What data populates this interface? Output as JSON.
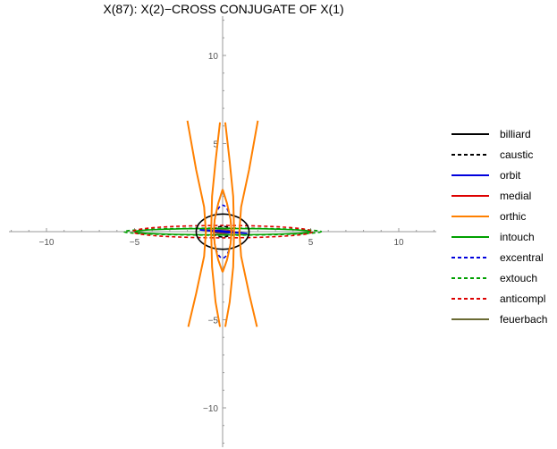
{
  "chart_data": {
    "type": "line",
    "title": "X(87): X(2)−CROSS CONJUGATE OF X(1)",
    "xlabel": "",
    "ylabel": "",
    "xlim": [
      -12.2,
      12.2
    ],
    "ylim": [
      -12.2,
      12.2
    ],
    "xticks": [
      -10,
      -5,
      5,
      10
    ],
    "yticks": [
      10,
      5,
      -5,
      -10
    ],
    "xtick_labels": [
      "−10",
      "−5",
      "5",
      "10"
    ],
    "ytick_labels": [
      "10",
      "5",
      "−5",
      "−10"
    ],
    "grid": false,
    "legend_position": "right",
    "series": [
      {
        "name": "billiard",
        "color": "#000000",
        "dash": "solid",
        "shape": "ellipse",
        "a": 1.5,
        "b": 1.0
      },
      {
        "name": "caustic",
        "color": "#000000",
        "dash": "dashed",
        "shape": "ellipse",
        "a": 0.55,
        "b": 0.3
      },
      {
        "name": "orbit",
        "color": "#0000dd",
        "dash": "solid",
        "shape": "polyline",
        "points": [
          [
            -1.3,
            0.1
          ],
          [
            0.3,
            -0.05
          ],
          [
            1.4,
            -0.1
          ],
          [
            -0.2,
            0.06
          ],
          [
            -1.3,
            0.1
          ]
        ]
      },
      {
        "name": "medial",
        "color": "#dd0000",
        "dash": "solid",
        "shape": "polyline",
        "points": [
          [
            -0.6,
            0.0
          ],
          [
            0.6,
            0.04
          ],
          [
            0.1,
            -0.05
          ],
          [
            -0.6,
            0.0
          ]
        ]
      },
      {
        "name": "orthic",
        "color": "#ff8000",
        "dash": "solid",
        "shape": "curves",
        "curves": [
          [
            [
              -2.0,
              6.3
            ],
            [
              -1.5,
              3.5
            ],
            [
              -1.05,
              1.4
            ],
            [
              -0.95,
              0
            ],
            [
              -1.05,
              -1.4
            ],
            [
              -1.5,
              -3.5
            ],
            [
              -1.95,
              -5.4
            ]
          ],
          [
            [
              2.0,
              6.3
            ],
            [
              1.5,
              3.5
            ],
            [
              1.05,
              1.4
            ],
            [
              0.95,
              0
            ],
            [
              1.05,
              -1.4
            ],
            [
              1.5,
              -3.5
            ],
            [
              1.95,
              -5.4
            ]
          ],
          [
            [
              -0.15,
              6.2
            ],
            [
              -0.4,
              4.0
            ],
            [
              -0.6,
              2.0
            ],
            [
              -0.65,
              0
            ],
            [
              -0.6,
              -2.0
            ],
            [
              -0.4,
              -4.0
            ],
            [
              -0.15,
              -5.4
            ]
          ],
          [
            [
              0.15,
              6.2
            ],
            [
              0.4,
              4.0
            ],
            [
              0.6,
              2.0
            ],
            [
              0.65,
              0
            ],
            [
              0.6,
              -2.0
            ],
            [
              0.4,
              -4.0
            ],
            [
              0.15,
              -5.4
            ]
          ],
          [
            [
              0.0,
              2.4
            ],
            [
              -0.25,
              1.6
            ],
            [
              -0.45,
              0.7
            ],
            [
              -0.5,
              0
            ],
            [
              -0.45,
              -0.7
            ],
            [
              -0.25,
              -1.6
            ],
            [
              0.0,
              -2.3
            ]
          ],
          [
            [
              0.0,
              2.4
            ],
            [
              0.25,
              1.6
            ],
            [
              0.45,
              0.7
            ],
            [
              0.5,
              0
            ],
            [
              0.45,
              -0.7
            ],
            [
              0.25,
              -1.6
            ],
            [
              0.0,
              -2.3
            ]
          ]
        ]
      },
      {
        "name": "intouch",
        "color": "#00a000",
        "dash": "solid",
        "shape": "ellipse",
        "a": 5.0,
        "b": 0.18
      },
      {
        "name": "excentral",
        "color": "#0000dd",
        "dash": "dashed",
        "shape": "ellipse",
        "a": 0.5,
        "b": 1.5
      },
      {
        "name": "extouch",
        "color": "#00a000",
        "dash": "dashed",
        "shape": "ellipse",
        "a": 5.6,
        "b": 0.2
      },
      {
        "name": "anticompl",
        "color": "#dd0000",
        "dash": "dashed",
        "shape": "ellipse",
        "a": 5.1,
        "b": 0.35
      },
      {
        "name": "feuerbach",
        "color": "#6b6b35",
        "dash": "solid",
        "shape": "ellipse",
        "a": 0.45,
        "b": 0.12
      }
    ]
  }
}
